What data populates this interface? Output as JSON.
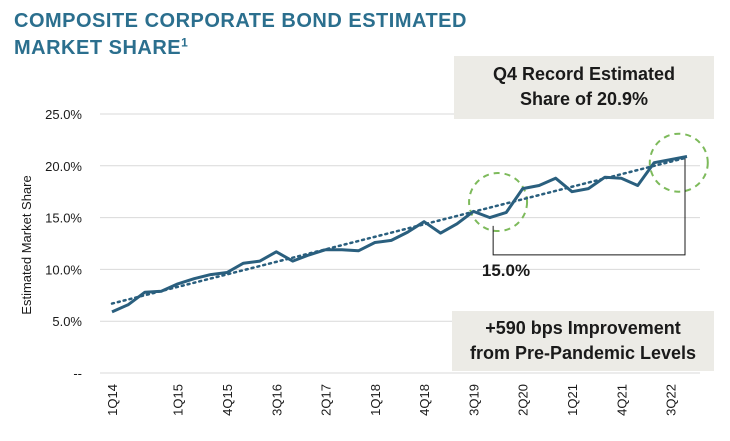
{
  "title": {
    "line1": "COMPOSITE CORPORATE BOND ESTIMATED",
    "line2": "MARKET SHARE",
    "footnote": "1"
  },
  "callouts": {
    "top_line1": "Q4 Record Estimated",
    "top_line2": "Share of 20.9%",
    "bottom_line1": "+590 bps Improvement",
    "bottom_line2": "from Pre-Pandemic Levels",
    "baseline_label": "15.0%"
  },
  "colors": {
    "title": "#2b6f8e",
    "line": "#2a5f7e",
    "trend": "#2a5f7e",
    "highlight_circle": "#7dba5b",
    "callout_bg": "#ecebe6"
  },
  "chart_data": {
    "type": "line",
    "ylabel": "Estimated Market Share",
    "xlabel": "",
    "ylim": [
      0,
      25
    ],
    "y_tick_labels": [
      "--",
      "5.0%",
      "10.0%",
      "15.0%",
      "20.0%",
      "25.0%"
    ],
    "x_tick_labels": [
      "1Q14",
      "1Q15",
      "4Q15",
      "3Q16",
      "2Q17",
      "1Q18",
      "4Q18",
      "3Q19",
      "2Q20",
      "1Q21",
      "4Q21",
      "3Q22"
    ],
    "x": [
      "1Q14",
      "2Q14",
      "3Q14",
      "4Q14",
      "1Q15",
      "2Q15",
      "3Q15",
      "4Q15",
      "1Q16",
      "2Q16",
      "3Q16",
      "4Q16",
      "1Q17",
      "2Q17",
      "3Q17",
      "4Q17",
      "1Q18",
      "2Q18",
      "3Q18",
      "4Q18",
      "1Q19",
      "2Q19",
      "3Q19",
      "4Q19",
      "1Q20",
      "2Q20",
      "3Q20",
      "4Q20",
      "1Q21",
      "2Q21",
      "3Q21",
      "4Q21",
      "1Q22",
      "2Q22",
      "3Q22",
      "4Q22"
    ],
    "series": [
      {
        "values": [
          5.9,
          6.6,
          7.8,
          7.9,
          8.6,
          9.1,
          9.5,
          9.7,
          10.6,
          10.8,
          11.7,
          10.8,
          11.4,
          11.9,
          11.9,
          11.8,
          12.6,
          12.8,
          13.6,
          14.6,
          13.5,
          14.4,
          15.6,
          15.0,
          15.5,
          17.8,
          18.1,
          18.8,
          17.5,
          17.8,
          18.9,
          18.8,
          18.1,
          20.3,
          20.6,
          20.9
        ]
      }
    ],
    "trendline": {
      "style": "dotted",
      "start": 6.7,
      "end": 20.8
    },
    "grid": "horizontal"
  }
}
